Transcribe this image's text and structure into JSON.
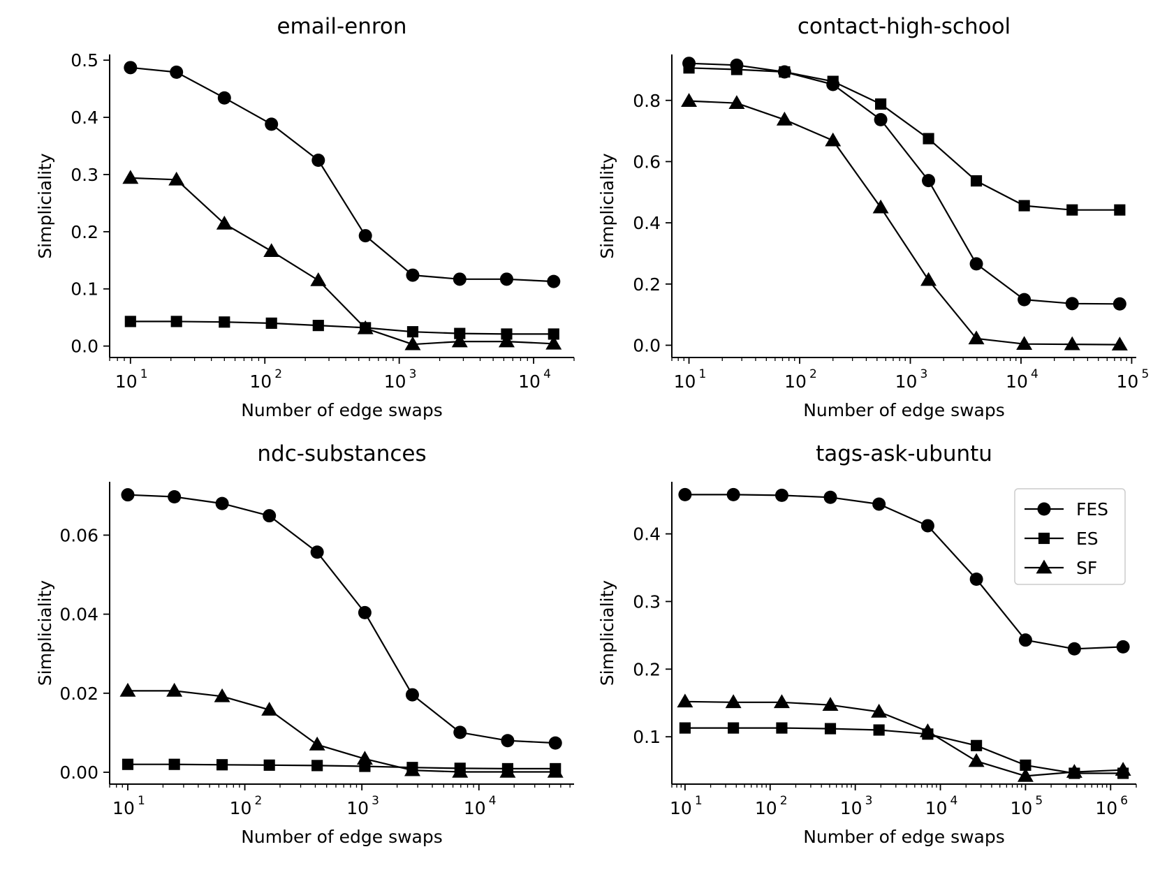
{
  "colors": {
    "line": "#000000",
    "background": "#ffffff",
    "legend_border": "#cccccc"
  },
  "chart_data": [
    {
      "type": "line",
      "title": "email-enron",
      "xlabel": "Number of edge swaps",
      "ylabel": "Simpliciality",
      "xscale": "log",
      "xlim": [
        7,
        20000
      ],
      "ylim": [
        -0.02,
        0.51
      ],
      "xticks": [
        {
          "base": "10",
          "exp": "1",
          "value": 10
        },
        {
          "base": "10",
          "exp": "2",
          "value": 100
        },
        {
          "base": "10",
          "exp": "3",
          "value": 1000
        },
        {
          "base": "10",
          "exp": "4",
          "value": 10000
        }
      ],
      "yticks": [
        {
          "label": "0.0",
          "value": 0.0
        },
        {
          "label": "0.1",
          "value": 0.1
        },
        {
          "label": "0.2",
          "value": 0.2
        },
        {
          "label": "0.3",
          "value": 0.3
        },
        {
          "label": "0.4",
          "value": 0.4
        },
        {
          "label": "0.5",
          "value": 0.5
        }
      ],
      "x": [
        10,
        22,
        50,
        112,
        250,
        560,
        1260,
        2820,
        6300,
        14100
      ],
      "series": [
        {
          "name": "FES",
          "marker": "circle",
          "values": [
            0.487,
            0.479,
            0.434,
            0.388,
            0.325,
            0.193,
            0.124,
            0.117,
            0.117,
            0.113
          ]
        },
        {
          "name": "ES",
          "marker": "square",
          "values": [
            0.043,
            0.043,
            0.042,
            0.04,
            0.036,
            0.032,
            0.025,
            0.022,
            0.021,
            0.021
          ]
        },
        {
          "name": "SF",
          "marker": "triangle",
          "values": [
            0.294,
            0.291,
            0.214,
            0.166,
            0.115,
            0.031,
            0.003,
            0.008,
            0.008,
            0.004
          ]
        }
      ],
      "legend": false
    },
    {
      "type": "line",
      "title": "contact-high-school",
      "xlabel": "Number of edge swaps",
      "ylabel": "Simpliciality",
      "xscale": "log",
      "xlim": [
        7,
        110000
      ],
      "ylim": [
        -0.04,
        0.95
      ],
      "xticks": [
        {
          "base": "10",
          "exp": "1",
          "value": 10
        },
        {
          "base": "10",
          "exp": "2",
          "value": 100
        },
        {
          "base": "10",
          "exp": "3",
          "value": 1000
        },
        {
          "base": "10",
          "exp": "4",
          "value": 10000
        },
        {
          "base": "10",
          "exp": "5",
          "value": 100000
        }
      ],
      "yticks": [
        {
          "label": "0.0",
          "value": 0.0
        },
        {
          "label": "0.2",
          "value": 0.2
        },
        {
          "label": "0.4",
          "value": 0.4
        },
        {
          "label": "0.6",
          "value": 0.6
        },
        {
          "label": "0.8",
          "value": 0.8
        }
      ],
      "x": [
        10,
        27,
        73,
        200,
        540,
        1460,
        3950,
        10700,
        29000,
        78000
      ],
      "series": [
        {
          "name": "FES",
          "marker": "circle",
          "values": [
            0.921,
            0.915,
            0.893,
            0.852,
            0.737,
            0.538,
            0.266,
            0.149,
            0.136,
            0.135
          ]
        },
        {
          "name": "ES",
          "marker": "square",
          "values": [
            0.906,
            0.901,
            0.893,
            0.862,
            0.788,
            0.675,
            0.537,
            0.456,
            0.442,
            0.442
          ]
        },
        {
          "name": "SF",
          "marker": "triangle",
          "values": [
            0.798,
            0.791,
            0.737,
            0.669,
            0.45,
            0.213,
            0.022,
            0.004,
            0.003,
            0.002
          ]
        }
      ],
      "legend": false
    },
    {
      "type": "line",
      "title": "ndc-substances",
      "xlabel": "Number of edge swaps",
      "ylabel": "Simpliciality",
      "xscale": "log",
      "xlim": [
        7,
        65000
      ],
      "ylim": [
        -0.003,
        0.0735
      ],
      "xticks": [
        {
          "base": "10",
          "exp": "1",
          "value": 10
        },
        {
          "base": "10",
          "exp": "2",
          "value": 100
        },
        {
          "base": "10",
          "exp": "3",
          "value": 1000
        },
        {
          "base": "10",
          "exp": "4",
          "value": 10000
        }
      ],
      "yticks": [
        {
          "label": "0.00",
          "value": 0.0
        },
        {
          "label": "0.02",
          "value": 0.02
        },
        {
          "label": "0.04",
          "value": 0.04
        },
        {
          "label": "0.06",
          "value": 0.06
        }
      ],
      "x": [
        10,
        25,
        64,
        162,
        415,
        1060,
        2700,
        6900,
        17600,
        45000
      ],
      "series": [
        {
          "name": "FES",
          "marker": "circle",
          "values": [
            0.0702,
            0.0697,
            0.068,
            0.0649,
            0.0557,
            0.0404,
            0.0196,
            0.0101,
            0.008,
            0.0074
          ]
        },
        {
          "name": "ES",
          "marker": "square",
          "values": [
            0.002,
            0.002,
            0.0019,
            0.0018,
            0.0017,
            0.0015,
            0.0012,
            0.001,
            0.0009,
            0.0009
          ]
        },
        {
          "name": "SF",
          "marker": "triangle",
          "values": [
            0.0206,
            0.0206,
            0.0192,
            0.0158,
            0.007,
            0.0034,
            0.0005,
            0.0001,
            0.0001,
            0.0001
          ]
        }
      ],
      "legend": false
    },
    {
      "type": "line",
      "title": "tags-ask-ubuntu",
      "xlabel": "Number of edge swaps",
      "ylabel": "Simpliciality",
      "xscale": "log",
      "xlim": [
        7,
        2000000
      ],
      "ylim": [
        0.03,
        0.477
      ],
      "xticks": [
        {
          "base": "10",
          "exp": "1",
          "value": 10
        },
        {
          "base": "10",
          "exp": "2",
          "value": 100
        },
        {
          "base": "10",
          "exp": "3",
          "value": 1000
        },
        {
          "base": "10",
          "exp": "4",
          "value": 10000
        },
        {
          "base": "10",
          "exp": "5",
          "value": 100000
        },
        {
          "base": "10",
          "exp": "6",
          "value": 1000000
        }
      ],
      "yticks": [
        {
          "label": "0.1",
          "value": 0.1
        },
        {
          "label": "0.2",
          "value": 0.2
        },
        {
          "label": "0.3",
          "value": 0.3
        },
        {
          "label": "0.4",
          "value": 0.4
        }
      ],
      "x": [
        10,
        37,
        137,
        510,
        1900,
        7100,
        26500,
        100000,
        375000,
        1400000
      ],
      "series": [
        {
          "name": "FES",
          "marker": "circle",
          "values": [
            0.458,
            0.458,
            0.457,
            0.454,
            0.444,
            0.412,
            0.333,
            0.243,
            0.23,
            0.233
          ]
        },
        {
          "name": "ES",
          "marker": "square",
          "values": [
            0.113,
            0.113,
            0.113,
            0.112,
            0.11,
            0.104,
            0.087,
            0.058,
            0.046,
            0.046
          ]
        },
        {
          "name": "SF",
          "marker": "triangle",
          "values": [
            0.152,
            0.151,
            0.151,
            0.147,
            0.137,
            0.108,
            0.064,
            0.042,
            0.048,
            0.051
          ]
        }
      ],
      "legend": true,
      "legend_position": "top-right"
    }
  ]
}
